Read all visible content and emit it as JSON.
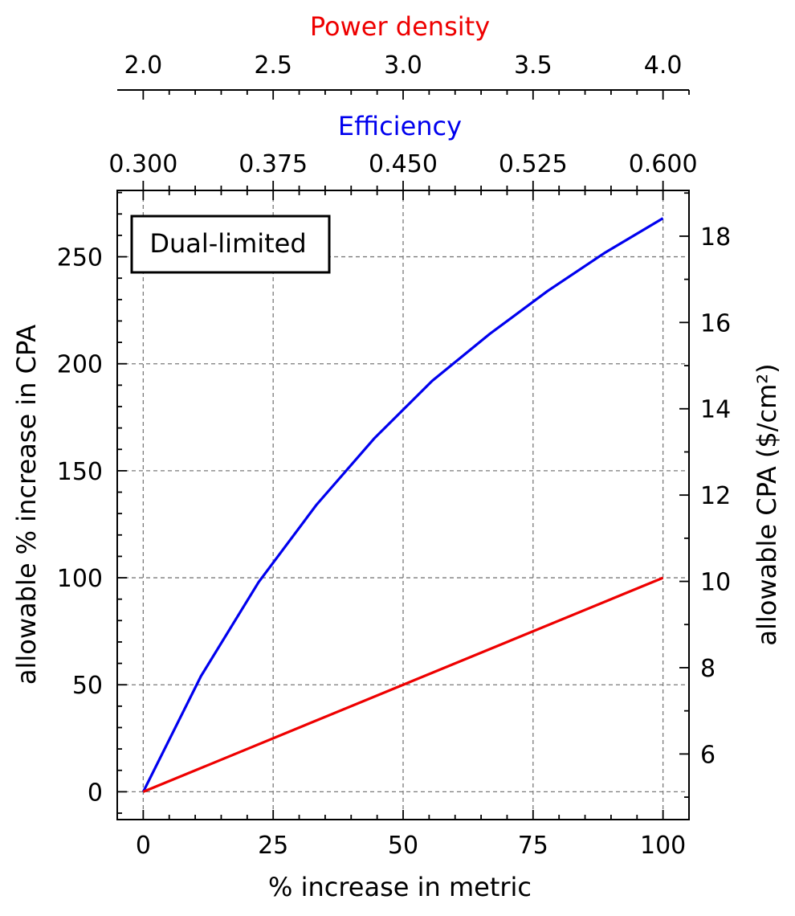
{
  "chart_data": {
    "type": "line",
    "annotation": "Dual-limited",
    "xlabel": "% increase in metric",
    "ylabel": "allowable % increase in CPA",
    "y2label": "allowable CPA ($/cm²)",
    "top_axis_efficiency": {
      "label": "Efficiency",
      "color": "#0000ee",
      "ticks": [
        "0.300",
        "0.375",
        "0.450",
        "0.525",
        "0.600"
      ],
      "range": [
        0.3,
        0.6
      ]
    },
    "top_axis_power_density": {
      "label": "Power density",
      "color": "#ee0000",
      "ticks": [
        "2.0",
        "2.5",
        "3.0",
        "3.5",
        "4.0"
      ],
      "range": [
        2.0,
        4.0
      ]
    },
    "xlim": [
      -5,
      105
    ],
    "ylim": [
      -13,
      281
    ],
    "y2lim": [
      4.48,
      19.06
    ],
    "x_ticks": [
      "0",
      "25",
      "50",
      "75",
      "100"
    ],
    "y_ticks": [
      "0",
      "50",
      "100",
      "150",
      "200",
      "250"
    ],
    "y2_ticks": [
      "6",
      "8",
      "10",
      "12",
      "14",
      "16",
      "18"
    ],
    "grid": true,
    "series": [
      {
        "color": "#0000ee",
        "x": [
          0,
          11.1,
          22.2,
          33.3,
          44.4,
          55.6,
          66.7,
          77.8,
          88.9,
          100
        ],
        "y": [
          0,
          54,
          98,
          134,
          165,
          192,
          214,
          234,
          252,
          268
        ]
      },
      {
        "color": "#ee0000",
        "x": [
          0,
          100
        ],
        "y": [
          0,
          100
        ]
      }
    ]
  }
}
